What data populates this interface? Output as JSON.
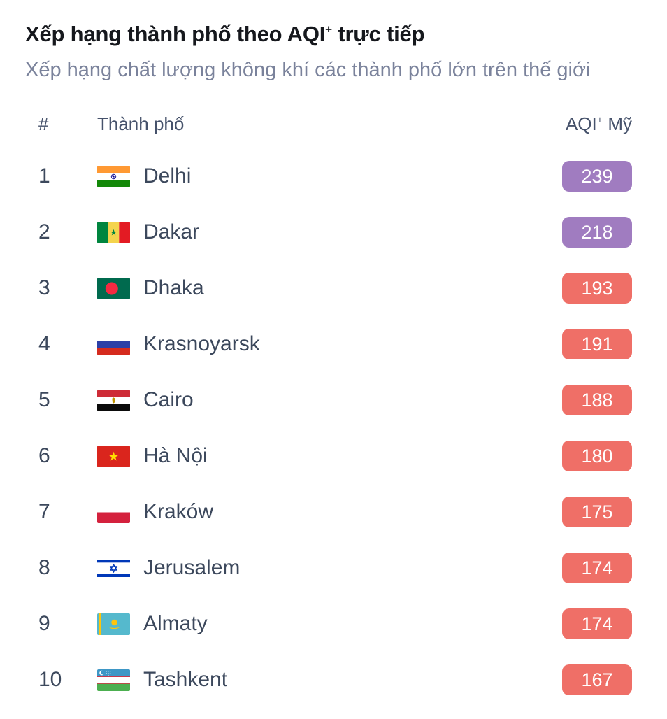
{
  "page": {
    "title": {
      "pre": "Xếp hạng thành phố theo AQI",
      "sup": "+",
      "post": " trực tiếp"
    },
    "subtitle": "Xếp hạng chất lượng không khí các thành phố lớn trên thế giới"
  },
  "table": {
    "headers": {
      "rank": "#",
      "city": "Thành phố",
      "aqi_pre": "AQI",
      "aqi_sup": "+",
      "aqi_post": " Mỹ"
    },
    "aqi_level_colors": {
      "unhealthy": "#ef6f67",
      "very_unhealthy": "#a07cc0"
    },
    "rows": [
      {
        "rank": "1",
        "city": "Delhi",
        "country": "india",
        "aqi": "239",
        "level": "very_unhealthy"
      },
      {
        "rank": "2",
        "city": "Dakar",
        "country": "senegal",
        "aqi": "218",
        "level": "very_unhealthy"
      },
      {
        "rank": "3",
        "city": "Dhaka",
        "country": "bangladesh",
        "aqi": "193",
        "level": "unhealthy"
      },
      {
        "rank": "4",
        "city": "Krasnoyarsk",
        "country": "russia",
        "aqi": "191",
        "level": "unhealthy"
      },
      {
        "rank": "5",
        "city": "Cairo",
        "country": "egypt",
        "aqi": "188",
        "level": "unhealthy"
      },
      {
        "rank": "6",
        "city": "Hà Nội",
        "country": "vietnam",
        "aqi": "180",
        "level": "unhealthy"
      },
      {
        "rank": "7",
        "city": "Kraków",
        "country": "poland",
        "aqi": "175",
        "level": "unhealthy"
      },
      {
        "rank": "8",
        "city": "Jerusalem",
        "country": "israel",
        "aqi": "174",
        "level": "unhealthy"
      },
      {
        "rank": "9",
        "city": "Almaty",
        "country": "kazakhstan",
        "aqi": "174",
        "level": "unhealthy"
      },
      {
        "rank": "10",
        "city": "Tashkent",
        "country": "uzbekistan",
        "aqi": "167",
        "level": "unhealthy"
      }
    ]
  }
}
